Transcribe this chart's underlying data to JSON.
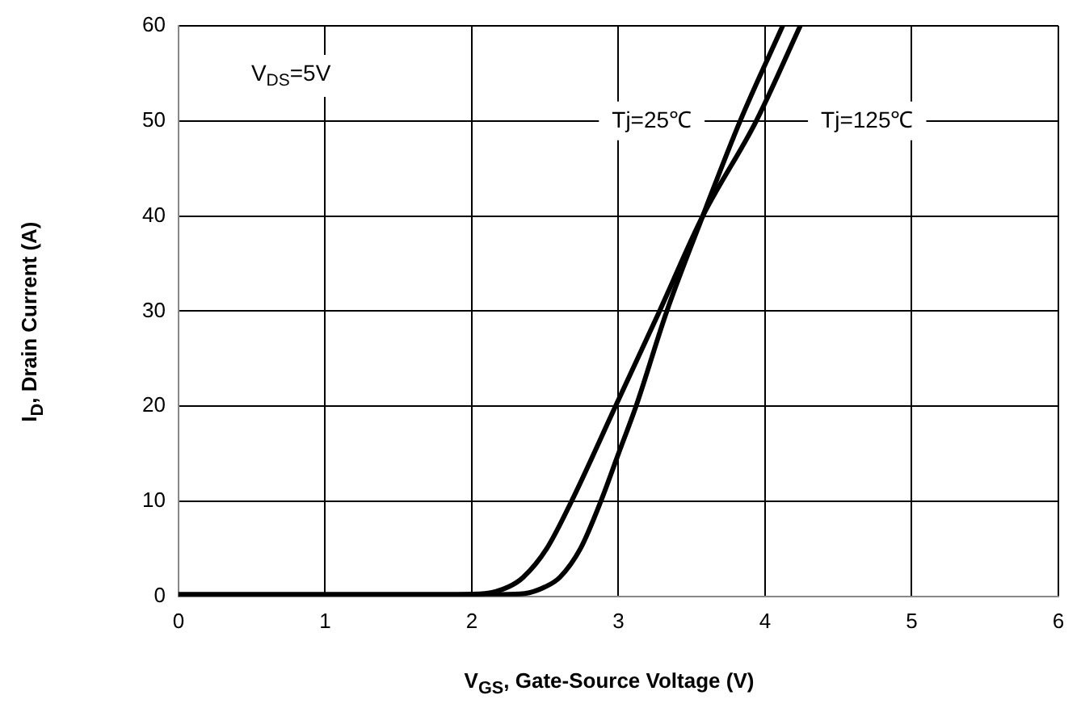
{
  "chart_data": {
    "type": "line",
    "xlabel": "V$_{GS}$, Gate-Source Voltage (V)",
    "ylabel": "I$_{D}$, Drain Current (A)",
    "xlim": [
      0,
      6
    ],
    "xticks": [
      0,
      1,
      2,
      3,
      4,
      5,
      6
    ],
    "ylim": [
      0,
      60
    ],
    "yticks": [
      0,
      10,
      20,
      30,
      40,
      50,
      60
    ],
    "grid": true,
    "marker": "none",
    "line_style": "solid",
    "legend": false,
    "annotations": [
      "V$_{DS}$=5V"
    ],
    "series": [
      {
        "name": "Tj=25℃",
        "color": "#000000",
        "x": [
          0,
          1,
          2,
          2.2,
          2.36,
          2.5,
          2.6,
          2.74,
          2.88,
          3.0,
          3.12,
          3.33,
          3.575,
          3.83,
          4.12
        ],
        "values": [
          0.2,
          0.2,
          0.2,
          0.2,
          0.3,
          1,
          2,
          5,
          10,
          15,
          20,
          30,
          40,
          50,
          60
        ]
      },
      {
        "name": "Tj=125℃",
        "color": "#000000",
        "x": [
          0,
          1,
          1.9,
          2.09,
          2.25,
          2.35,
          2.51,
          2.68,
          2.98,
          3.28,
          3.575,
          3.94,
          4.24
        ],
        "values": [
          0.2,
          0.2,
          0.2,
          0.3,
          1,
          2,
          5,
          10,
          20,
          30,
          40,
          50,
          60
        ]
      }
    ]
  }
}
